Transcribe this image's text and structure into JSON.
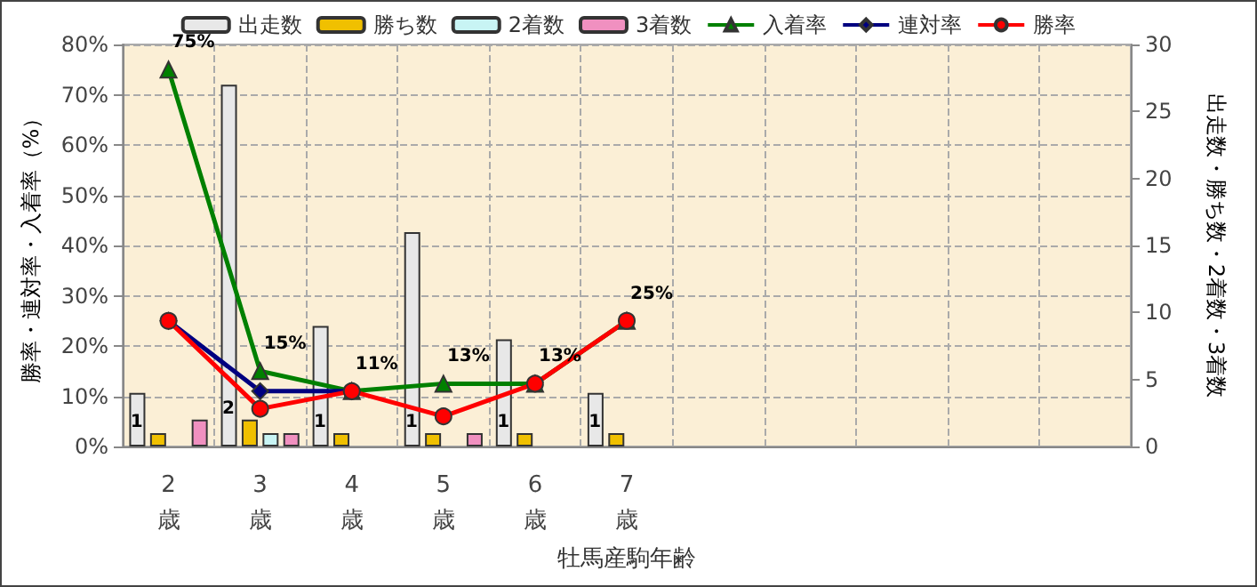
{
  "chart_data": {
    "type": "bar",
    "xlabel": "牡馬産駒年齢",
    "ylabel": "勝率・連対率・入着率（%）",
    "y2label": "出走数・勝ち数・2着数・3着数",
    "categories": [
      "2\n歳",
      "3\n歳",
      "4\n歳",
      "5\n歳",
      "6\n歳",
      "7\n歳",
      null,
      null,
      null,
      null,
      null
    ],
    "series": [
      {
        "name": "出走数",
        "axis": "y2",
        "color": "#e8e8e8",
        "values": [
          4,
          27,
          9,
          16,
          8,
          4,
          null,
          null,
          null,
          null,
          null
        ]
      },
      {
        "name": "勝ち数",
        "axis": "y2",
        "color": "#f0c000",
        "values": [
          1,
          2,
          1,
          1,
          1,
          1,
          null,
          null,
          null,
          null,
          null
        ],
        "value_labels": [
          "1",
          "2",
          "1",
          "1",
          "1",
          "1",
          null,
          null,
          null,
          null,
          null
        ]
      },
      {
        "name": "2着数",
        "axis": "y2",
        "color": "#c8f4f4",
        "values": [
          0,
          1,
          0,
          0,
          0,
          0,
          null,
          null,
          null,
          null,
          null
        ]
      },
      {
        "name": "3着数",
        "axis": "y2",
        "color": "#f090c0",
        "values": [
          2,
          1,
          0,
          1,
          0,
          0,
          null,
          null,
          null,
          null,
          null
        ]
      },
      {
        "name": "入着率",
        "type": "line",
        "marker": "triangle",
        "color": "#008000",
        "values": [
          75,
          15,
          11,
          12.5,
          12.5,
          25,
          null,
          null,
          null,
          null,
          null
        ],
        "value_labels": [
          "75%",
          "15%",
          "11%",
          "13%",
          "13%",
          "25%",
          null,
          null,
          null,
          null,
          null
        ]
      },
      {
        "name": "連対率",
        "type": "line",
        "marker": "diamond",
        "color": "#000080",
        "values": [
          25,
          11,
          11,
          null,
          null,
          null,
          null,
          null,
          null,
          null,
          null
        ]
      },
      {
        "name": "勝率",
        "type": "line",
        "marker": "circle",
        "color": "#ff0000",
        "values": [
          25,
          7.5,
          11,
          6,
          12.5,
          25,
          null,
          null,
          null,
          null,
          null
        ]
      }
    ],
    "ylim": [
      0,
      80
    ],
    "yticks": [
      {
        "value": 0,
        "label": "0%"
      },
      {
        "value": 10,
        "label": "10%"
      },
      {
        "value": 20,
        "label": "20%"
      },
      {
        "value": 30,
        "label": "30%"
      },
      {
        "value": 40,
        "label": "40%"
      },
      {
        "value": 50,
        "label": "50%"
      },
      {
        "value": 60,
        "label": "60%"
      },
      {
        "value": 70,
        "label": "70%"
      },
      {
        "value": 80,
        "label": "80%"
      }
    ],
    "y2lim": [
      0,
      30
    ],
    "y2ticks": [
      0,
      5,
      10,
      15,
      20,
      25,
      30
    ],
    "grid": true,
    "legend": "top"
  }
}
